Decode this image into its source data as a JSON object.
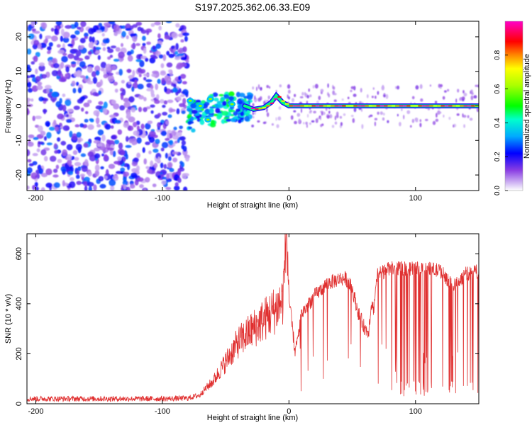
{
  "title": "S197.2025.362.06.33.E09",
  "colorbar": {
    "label": "Normalized spectral amplitude",
    "range": [
      0,
      1
    ],
    "ticks": [
      "0.0",
      "0.2",
      "0.4",
      "0.6",
      "0.8"
    ],
    "tick_values": [
      0.0,
      0.2,
      0.4,
      0.6,
      0.8
    ]
  },
  "chart_data": [
    {
      "type": "heatmap",
      "name": "spectrogram",
      "xlabel": "Height of straight line (km)",
      "ylabel": "Frequency (Hz)",
      "xlim": [
        -207,
        150
      ],
      "ylim": [
        -24.5,
        24.5
      ],
      "xticks": [
        -200,
        -100,
        0,
        100
      ],
      "xtick_labels": [
        "-200",
        "-100",
        "0",
        "100"
      ],
      "yticks": [
        -20,
        -10,
        0,
        10,
        20
      ],
      "ytick_labels": [
        "-20",
        "-10",
        "0",
        "10",
        "20"
      ],
      "regions": [
        {
          "x_range": [
            -207,
            -80
          ],
          "desc": "broadband noise",
          "amplitude": [
            0.05,
            0.3
          ]
        },
        {
          "x_range": [
            -80,
            -30
          ],
          "desc": "scattered signal near 0 Hz",
          "amplitude": [
            0.2,
            0.5
          ]
        },
        {
          "x_range": [
            -30,
            150
          ],
          "desc": "strong narrow line at 0 Hz",
          "amplitude": [
            0.6,
            1.0
          ]
        }
      ],
      "ridge": {
        "x": [
          -35,
          -28,
          -20,
          -14,
          -10,
          -5,
          0,
          150
        ],
        "y": [
          0,
          -1,
          -0.5,
          1,
          3,
          1,
          0,
          0
        ]
      }
    },
    {
      "type": "line",
      "name": "snr",
      "xlabel": "Height of straight line (km)",
      "ylabel": "SNR (10 * v/v)",
      "xlim": [
        -207,
        150
      ],
      "ylim": [
        0,
        680
      ],
      "xticks": [
        -200,
        -100,
        0,
        100
      ],
      "xtick_labels": [
        "-200",
        "-100",
        "0",
        "100"
      ],
      "yticks": [
        0,
        200,
        400,
        600
      ],
      "ytick_labels": [
        "0",
        "200",
        "400",
        "600"
      ],
      "series": [
        {
          "name": "SNR",
          "color": "#e03030",
          "x": [
            -207,
            -150,
            -100,
            -80,
            -70,
            -60,
            -50,
            -40,
            -30,
            -20,
            -10,
            -5,
            -2,
            0,
            5,
            10,
            20,
            30,
            40,
            45,
            50,
            55,
            60,
            63,
            65,
            67,
            70,
            80,
            90,
            100,
            110,
            120,
            130,
            140,
            150
          ],
          "y": [
            20,
            20,
            20,
            22,
            35,
            80,
            150,
            220,
            260,
            300,
            340,
            370,
            600,
            420,
            200,
            360,
            430,
            480,
            500,
            500,
            460,
            360,
            300,
            290,
            400,
            380,
            520,
            540,
            540,
            540,
            540,
            530,
            470,
            520,
            530
          ]
        }
      ]
    }
  ]
}
